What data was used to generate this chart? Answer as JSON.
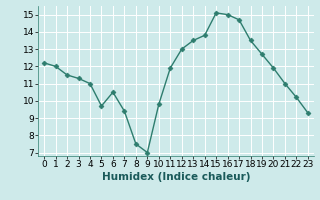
{
  "x": [
    0,
    1,
    2,
    3,
    4,
    5,
    6,
    7,
    8,
    9,
    10,
    11,
    12,
    13,
    14,
    15,
    16,
    17,
    18,
    19,
    20,
    21,
    22,
    23
  ],
  "y": [
    12.2,
    12.0,
    11.5,
    11.3,
    11.0,
    9.7,
    10.5,
    9.4,
    7.5,
    7.0,
    9.8,
    11.9,
    13.0,
    13.5,
    13.8,
    15.1,
    15.0,
    14.7,
    13.5,
    12.7,
    11.9,
    11.0,
    10.2,
    9.3
  ],
  "line_color": "#2e7d6e",
  "marker": "D",
  "marker_size": 2.5,
  "xlabel": "Humidex (Indice chaleur)",
  "xlim": [
    -0.5,
    23.5
  ],
  "ylim": [
    6.8,
    15.5
  ],
  "yticks": [
    7,
    8,
    9,
    10,
    11,
    12,
    13,
    14,
    15
  ],
  "xticks": [
    0,
    1,
    2,
    3,
    4,
    5,
    6,
    7,
    8,
    9,
    10,
    11,
    12,
    13,
    14,
    15,
    16,
    17,
    18,
    19,
    20,
    21,
    22,
    23
  ],
  "background_color": "#ceeaea",
  "grid_color": "#ffffff",
  "tick_fontsize": 6.5,
  "xlabel_fontsize": 7.5,
  "line_width": 1.0
}
